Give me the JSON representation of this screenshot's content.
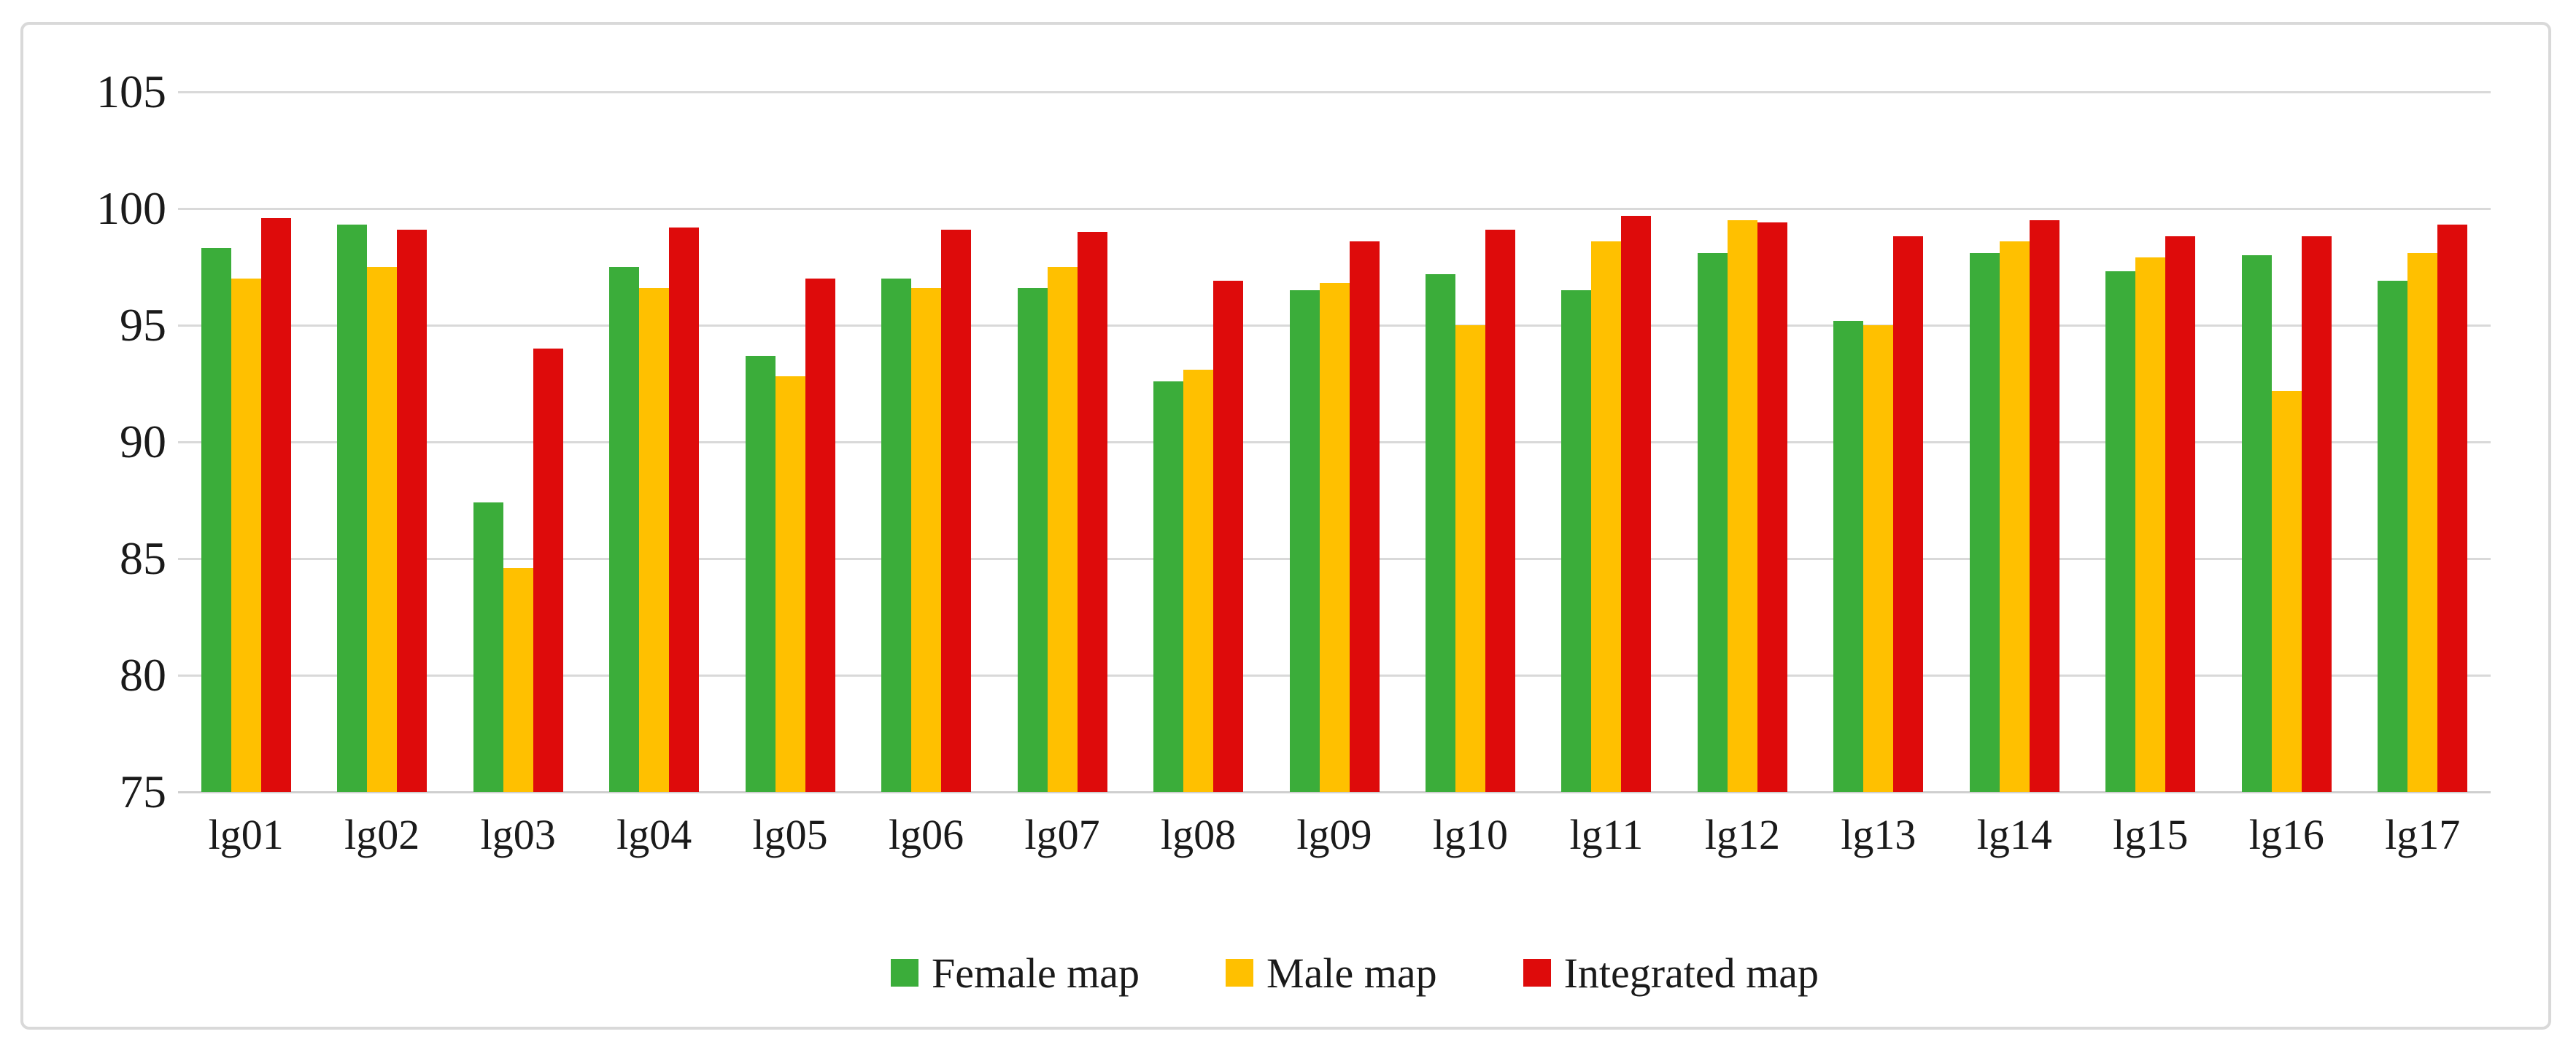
{
  "chart_data": {
    "type": "bar",
    "title": "",
    "xlabel": "",
    "ylabel": "",
    "categories": [
      "lg01",
      "lg02",
      "lg03",
      "lg04",
      "lg05",
      "lg06",
      "lg07",
      "lg08",
      "lg09",
      "lg10",
      "lg11",
      "lg12",
      "lg13",
      "lg14",
      "lg15",
      "lg16",
      "lg17"
    ],
    "series": [
      {
        "name": "Female map",
        "color": "#3BAD3A",
        "values": [
          98.3,
          99.3,
          87.4,
          97.5,
          93.7,
          97.0,
          96.6,
          92.6,
          96.5,
          97.2,
          96.5,
          98.1,
          95.2,
          98.1,
          97.3,
          98.0,
          96.9
        ]
      },
      {
        "name": "Male map",
        "color": "#FFC000",
        "values": [
          97.0,
          97.5,
          84.6,
          96.6,
          92.8,
          96.6,
          97.5,
          93.1,
          96.8,
          95.0,
          98.6,
          99.5,
          95.0,
          98.6,
          97.9,
          92.2,
          98.1
        ]
      },
      {
        "name": "Integrated map",
        "color": "#DE0B0B",
        "values": [
          99.6,
          99.1,
          94.0,
          99.2,
          97.0,
          99.1,
          99.0,
          96.9,
          98.6,
          99.1,
          99.7,
          99.4,
          98.8,
          99.5,
          98.8,
          98.8,
          99.3
        ]
      }
    ],
    "ylim": [
      75,
      105
    ],
    "y_ticks": [
      105,
      100,
      95,
      90,
      85,
      80,
      75
    ],
    "y_tick_labels": [
      "105",
      "100",
      "95",
      "90",
      "85",
      "80",
      "75"
    ],
    "grid": true,
    "legend_position": "bottom",
    "colors": {
      "gridline": "#d9d9d9",
      "border": "#d9d9d9",
      "text": "#1a1a1a",
      "background": "#ffffff"
    }
  }
}
